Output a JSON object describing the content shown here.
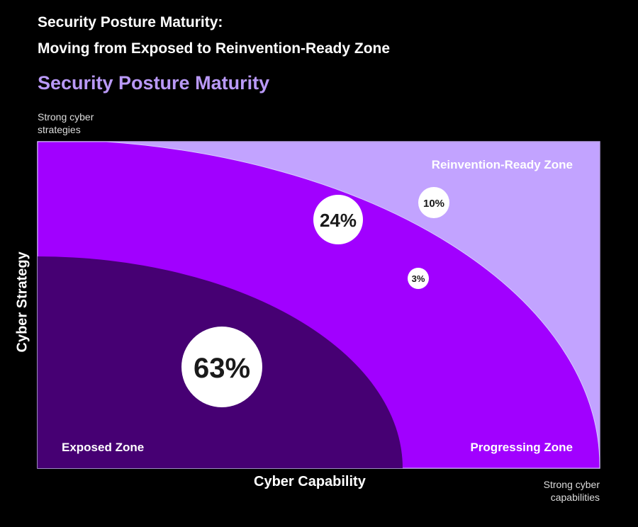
{
  "header": {
    "title_line1": "Security Posture Maturity:",
    "title_line2": "Moving from Exposed to Reinvention-Ready Zone",
    "chart_title": "Security Posture Maturity"
  },
  "axes": {
    "y_label": "Cyber Strategy",
    "y_top_note": "Strong cyber strategies",
    "x_label": "Cyber Capability",
    "x_right_note": "Strong cyber capabilities"
  },
  "zones": [
    {
      "name": "Reinvention-Ready Zone",
      "color": "#c2a3ff"
    },
    {
      "name": "Progressing Zone",
      "color": "#a100ff"
    },
    {
      "name": "Exposed Zone",
      "color": "#460073"
    }
  ],
  "bubbles": [
    {
      "label": "63%",
      "value": 63,
      "zone": "Exposed Zone"
    },
    {
      "label": "24%",
      "value": 24,
      "zone": "Progressing Zone"
    },
    {
      "label": "10%",
      "value": 10,
      "zone": "Reinvention-Ready Zone"
    },
    {
      "label": "3%",
      "value": 3,
      "zone": "Progressing Zone"
    }
  ]
}
